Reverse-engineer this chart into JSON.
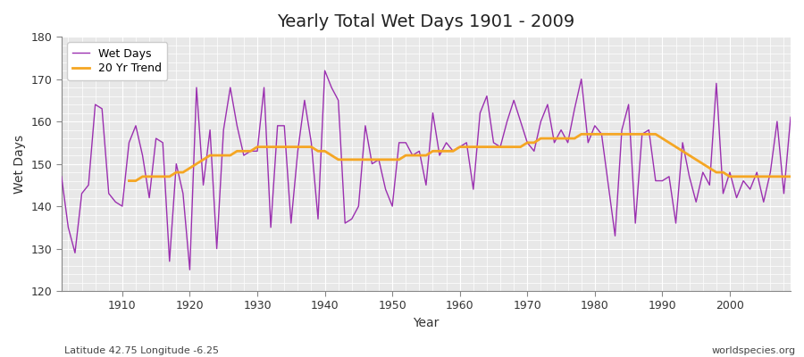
{
  "title": "Yearly Total Wet Days 1901 - 2009",
  "xlabel": "Year",
  "ylabel": "Wet Days",
  "footer_left": "Latitude 42.75 Longitude -6.25",
  "footer_right": "worldspecies.org",
  "ylim": [
    120,
    180
  ],
  "yticks": [
    120,
    130,
    140,
    150,
    160,
    170,
    180
  ],
  "xlim": [
    1901,
    2009
  ],
  "plot_bg_color": "#e8e8e8",
  "fig_bg_color": "#ffffff",
  "wet_days_color": "#9b30b0",
  "trend_color": "#f5a623",
  "legend_labels": [
    "Wet Days",
    "20 Yr Trend"
  ],
  "footer_color": "#444444",
  "years": [
    1901,
    1902,
    1903,
    1904,
    1905,
    1906,
    1907,
    1908,
    1909,
    1910,
    1911,
    1912,
    1913,
    1914,
    1915,
    1916,
    1917,
    1918,
    1919,
    1920,
    1921,
    1922,
    1923,
    1924,
    1925,
    1926,
    1927,
    1928,
    1929,
    1930,
    1931,
    1932,
    1933,
    1934,
    1935,
    1936,
    1937,
    1938,
    1939,
    1940,
    1941,
    1942,
    1943,
    1944,
    1945,
    1946,
    1947,
    1948,
    1949,
    1950,
    1951,
    1952,
    1953,
    1954,
    1955,
    1956,
    1957,
    1958,
    1959,
    1960,
    1961,
    1962,
    1963,
    1964,
    1965,
    1966,
    1967,
    1968,
    1969,
    1970,
    1971,
    1972,
    1973,
    1974,
    1975,
    1976,
    1977,
    1978,
    1979,
    1980,
    1981,
    1982,
    1983,
    1984,
    1985,
    1986,
    1987,
    1988,
    1989,
    1990,
    1991,
    1992,
    1993,
    1994,
    1995,
    1996,
    1997,
    1998,
    1999,
    2000,
    2001,
    2002,
    2003,
    2004,
    2005,
    2006,
    2007,
    2008,
    2009
  ],
  "wet_days": [
    147,
    135,
    129,
    143,
    145,
    164,
    163,
    143,
    141,
    140,
    155,
    159,
    152,
    142,
    156,
    155,
    127,
    150,
    143,
    125,
    168,
    145,
    158,
    130,
    158,
    168,
    159,
    152,
    153,
    153,
    168,
    135,
    159,
    159,
    136,
    153,
    165,
    155,
    137,
    172,
    168,
    165,
    136,
    137,
    140,
    159,
    150,
    151,
    144,
    140,
    155,
    155,
    152,
    153,
    145,
    162,
    152,
    155,
    153,
    154,
    155,
    144,
    162,
    166,
    155,
    154,
    160,
    165,
    160,
    155,
    153,
    160,
    164,
    155,
    158,
    155,
    163,
    170,
    155,
    159,
    157,
    145,
    133,
    158,
    164,
    136,
    157,
    158,
    146,
    146,
    147,
    136,
    155,
    147,
    141,
    148,
    145,
    169,
    143,
    148,
    142,
    146,
    144,
    148,
    141,
    148,
    160,
    143,
    161
  ],
  "trend_years": [
    1911,
    1912,
    1913,
    1914,
    1915,
    1916,
    1917,
    1918,
    1919,
    1920,
    1921,
    1922,
    1923,
    1924,
    1925,
    1926,
    1927,
    1928,
    1929,
    1930,
    1931,
    1932,
    1933,
    1934,
    1935,
    1936,
    1937,
    1938,
    1939,
    1940,
    1941,
    1942,
    1943,
    1944,
    1945,
    1946,
    1947,
    1948,
    1949,
    1950,
    1951,
    1952,
    1953,
    1954,
    1955,
    1956,
    1957,
    1958,
    1959,
    1960,
    1961,
    1962,
    1963,
    1964,
    1965,
    1966,
    1967,
    1968,
    1969,
    1970,
    1971,
    1972,
    1973,
    1974,
    1975,
    1976,
    1977,
    1978,
    1979,
    1980,
    1981,
    1982,
    1983,
    1984,
    1985,
    1986,
    1987,
    1988,
    1989,
    1990,
    1991,
    1992,
    1993,
    1994,
    1995,
    1996,
    1997,
    1998,
    1999,
    2000,
    2001,
    2002,
    2003,
    2004,
    2005,
    2006,
    2007,
    2008,
    2009
  ],
  "trend_values": [
    146,
    146,
    147,
    147,
    147,
    147,
    147,
    148,
    148,
    149,
    150,
    151,
    152,
    152,
    152,
    152,
    153,
    153,
    153,
    154,
    154,
    154,
    154,
    154,
    154,
    154,
    154,
    154,
    153,
    153,
    152,
    151,
    151,
    151,
    151,
    151,
    151,
    151,
    151,
    151,
    151,
    152,
    152,
    152,
    152,
    153,
    153,
    153,
    153,
    154,
    154,
    154,
    154,
    154,
    154,
    154,
    154,
    154,
    154,
    155,
    155,
    156,
    156,
    156,
    156,
    156,
    156,
    157,
    157,
    157,
    157,
    157,
    157,
    157,
    157,
    157,
    157,
    157,
    157,
    156,
    155,
    154,
    153,
    152,
    151,
    150,
    149,
    148,
    148,
    147,
    147,
    147,
    147,
    147,
    147,
    147,
    147,
    147,
    147
  ]
}
